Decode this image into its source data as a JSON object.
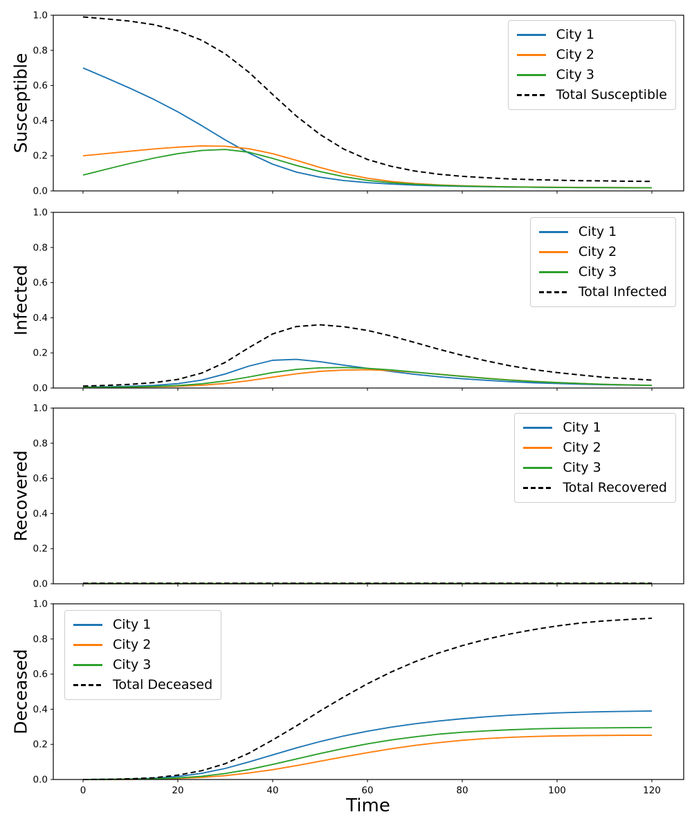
{
  "figure": {
    "xlabel": "Time",
    "background": "#ffffff"
  },
  "axes": {
    "xticks": [
      0,
      20,
      40,
      60,
      80,
      100,
      120
    ],
    "yticks": [
      "0.0",
      "0.2",
      "0.4",
      "0.6",
      "0.8",
      "1.0"
    ]
  },
  "x": [
    0,
    5,
    10,
    15,
    20,
    25,
    30,
    35,
    40,
    45,
    50,
    55,
    60,
    65,
    70,
    75,
    80,
    85,
    90,
    95,
    100,
    105,
    110,
    115,
    120
  ],
  "chart_data": [
    {
      "type": "line",
      "ylabel": "Susceptible",
      "ylim": [
        0,
        1
      ],
      "grid": false,
      "legend_position": "upper right",
      "series": [
        {
          "name": "City 1",
          "color": "#1f77b4",
          "style": "solid",
          "values": [
            0.7,
            0.642,
            0.583,
            0.52,
            0.45,
            0.372,
            0.29,
            0.215,
            0.152,
            0.107,
            0.078,
            0.059,
            0.047,
            0.039,
            0.033,
            0.029,
            0.026,
            0.024,
            0.022,
            0.021,
            0.02,
            0.019,
            0.019,
            0.018,
            0.018
          ]
        },
        {
          "name": "City 2",
          "color": "#ff7f0e",
          "style": "solid",
          "values": [
            0.2,
            0.213,
            0.226,
            0.239,
            0.249,
            0.256,
            0.254,
            0.24,
            0.212,
            0.174,
            0.133,
            0.098,
            0.072,
            0.054,
            0.042,
            0.034,
            0.029,
            0.026,
            0.023,
            0.022,
            0.021,
            0.02,
            0.019,
            0.019,
            0.018
          ]
        },
        {
          "name": "City 3",
          "color": "#2ca02c",
          "style": "solid",
          "values": [
            0.09,
            0.124,
            0.157,
            0.187,
            0.212,
            0.23,
            0.236,
            0.22,
            0.185,
            0.145,
            0.11,
            0.081,
            0.06,
            0.047,
            0.038,
            0.032,
            0.028,
            0.025,
            0.023,
            0.021,
            0.02,
            0.019,
            0.019,
            0.018,
            0.018
          ]
        },
        {
          "name": "Total Susceptible",
          "color": "#000000",
          "style": "dashed",
          "values": [
            0.99,
            0.979,
            0.966,
            0.946,
            0.911,
            0.858,
            0.78,
            0.675,
            0.549,
            0.426,
            0.321,
            0.238,
            0.179,
            0.14,
            0.113,
            0.095,
            0.083,
            0.075,
            0.068,
            0.064,
            0.061,
            0.058,
            0.057,
            0.055,
            0.054
          ]
        }
      ]
    },
    {
      "type": "line",
      "ylabel": "Infected",
      "ylim": [
        0,
        1
      ],
      "grid": false,
      "legend_position": "upper right",
      "series": [
        {
          "name": "City 1",
          "color": "#1f77b4",
          "style": "solid",
          "values": [
            0.005,
            0.007,
            0.01,
            0.015,
            0.025,
            0.045,
            0.08,
            0.125,
            0.158,
            0.163,
            0.15,
            0.13,
            0.112,
            0.094,
            0.078,
            0.064,
            0.053,
            0.044,
            0.036,
            0.03,
            0.026,
            0.022,
            0.019,
            0.017,
            0.015
          ]
        },
        {
          "name": "City 2",
          "color": "#ff7f0e",
          "style": "solid",
          "values": [
            0.003,
            0.004,
            0.005,
            0.007,
            0.01,
            0.016,
            0.026,
            0.042,
            0.062,
            0.081,
            0.095,
            0.102,
            0.104,
            0.099,
            0.09,
            0.079,
            0.067,
            0.056,
            0.046,
            0.038,
            0.031,
            0.026,
            0.021,
            0.018,
            0.015
          ]
        },
        {
          "name": "City 3",
          "color": "#2ca02c",
          "style": "solid",
          "values": [
            0.003,
            0.004,
            0.006,
            0.009,
            0.014,
            0.024,
            0.04,
            0.063,
            0.088,
            0.106,
            0.115,
            0.117,
            0.112,
            0.103,
            0.091,
            0.078,
            0.066,
            0.055,
            0.045,
            0.037,
            0.031,
            0.026,
            0.021,
            0.018,
            0.015
          ]
        },
        {
          "name": "Total Infected",
          "color": "#000000",
          "style": "dashed",
          "values": [
            0.011,
            0.015,
            0.021,
            0.031,
            0.049,
            0.085,
            0.146,
            0.23,
            0.308,
            0.35,
            0.36,
            0.349,
            0.328,
            0.296,
            0.259,
            0.221,
            0.186,
            0.155,
            0.127,
            0.105,
            0.088,
            0.074,
            0.061,
            0.053,
            0.045
          ]
        }
      ]
    },
    {
      "type": "line",
      "ylabel": "Recovered",
      "ylim": [
        0,
        1
      ],
      "grid": false,
      "legend_position": "upper right",
      "series": [
        {
          "name": "City 1",
          "color": "#1f77b4",
          "style": "solid",
          "values": [
            0.001,
            0.001,
            0.001,
            0.001,
            0.001,
            0.001,
            0.001,
            0.001,
            0.001,
            0.001,
            0.001,
            0.001,
            0.001,
            0.001,
            0.001,
            0.001,
            0.001,
            0.001,
            0.001,
            0.001,
            0.001,
            0.001,
            0.001,
            0.001,
            0.001
          ]
        },
        {
          "name": "City 2",
          "color": "#ff7f0e",
          "style": "solid",
          "values": [
            0.001,
            0.001,
            0.001,
            0.001,
            0.001,
            0.001,
            0.001,
            0.001,
            0.001,
            0.001,
            0.001,
            0.001,
            0.001,
            0.001,
            0.001,
            0.001,
            0.001,
            0.001,
            0.001,
            0.001,
            0.001,
            0.001,
            0.001,
            0.001,
            0.001
          ]
        },
        {
          "name": "City 3",
          "color": "#2ca02c",
          "style": "solid",
          "values": [
            0.001,
            0.001,
            0.001,
            0.001,
            0.001,
            0.001,
            0.001,
            0.001,
            0.001,
            0.001,
            0.001,
            0.001,
            0.001,
            0.001,
            0.001,
            0.001,
            0.001,
            0.001,
            0.001,
            0.001,
            0.001,
            0.001,
            0.001,
            0.001,
            0.001
          ]
        },
        {
          "name": "Total Recovered",
          "color": "#000000",
          "style": "dashed",
          "values": [
            0.003,
            0.003,
            0.003,
            0.003,
            0.003,
            0.003,
            0.003,
            0.003,
            0.003,
            0.003,
            0.003,
            0.003,
            0.003,
            0.003,
            0.003,
            0.003,
            0.003,
            0.003,
            0.003,
            0.003,
            0.003,
            0.003,
            0.003,
            0.003,
            0.003
          ]
        }
      ]
    },
    {
      "type": "line",
      "ylabel": "Deceased",
      "xlabel": "Time",
      "ylim": [
        0,
        1
      ],
      "grid": false,
      "legend_position": "upper left",
      "series": [
        {
          "name": "City 1",
          "color": "#1f77b4",
          "style": "solid",
          "values": [
            0.0,
            0.001,
            0.003,
            0.007,
            0.017,
            0.035,
            0.063,
            0.1,
            0.14,
            0.18,
            0.216,
            0.248,
            0.275,
            0.298,
            0.317,
            0.333,
            0.346,
            0.357,
            0.366,
            0.373,
            0.379,
            0.383,
            0.386,
            0.388,
            0.39
          ]
        },
        {
          "name": "City 2",
          "color": "#ff7f0e",
          "style": "solid",
          "values": [
            0.0,
            0.0,
            0.001,
            0.003,
            0.006,
            0.012,
            0.022,
            0.037,
            0.056,
            0.079,
            0.104,
            0.129,
            0.153,
            0.175,
            0.194,
            0.21,
            0.223,
            0.233,
            0.24,
            0.245,
            0.248,
            0.25,
            0.251,
            0.252,
            0.252
          ]
        },
        {
          "name": "City 3",
          "color": "#2ca02c",
          "style": "solid",
          "values": [
            0.0,
            0.001,
            0.002,
            0.004,
            0.009,
            0.018,
            0.034,
            0.057,
            0.086,
            0.117,
            0.148,
            0.177,
            0.203,
            0.225,
            0.243,
            0.258,
            0.269,
            0.277,
            0.283,
            0.288,
            0.291,
            0.293,
            0.294,
            0.295,
            0.296
          ]
        },
        {
          "name": "Total Deceased",
          "color": "#000000",
          "style": "dashed",
          "values": [
            0.0,
            0.001,
            0.004,
            0.01,
            0.025,
            0.05,
            0.09,
            0.15,
            0.225,
            0.305,
            0.39,
            0.47,
            0.545,
            0.612,
            0.67,
            0.72,
            0.762,
            0.798,
            0.828,
            0.853,
            0.874,
            0.891,
            0.903,
            0.911,
            0.918
          ]
        }
      ]
    }
  ]
}
